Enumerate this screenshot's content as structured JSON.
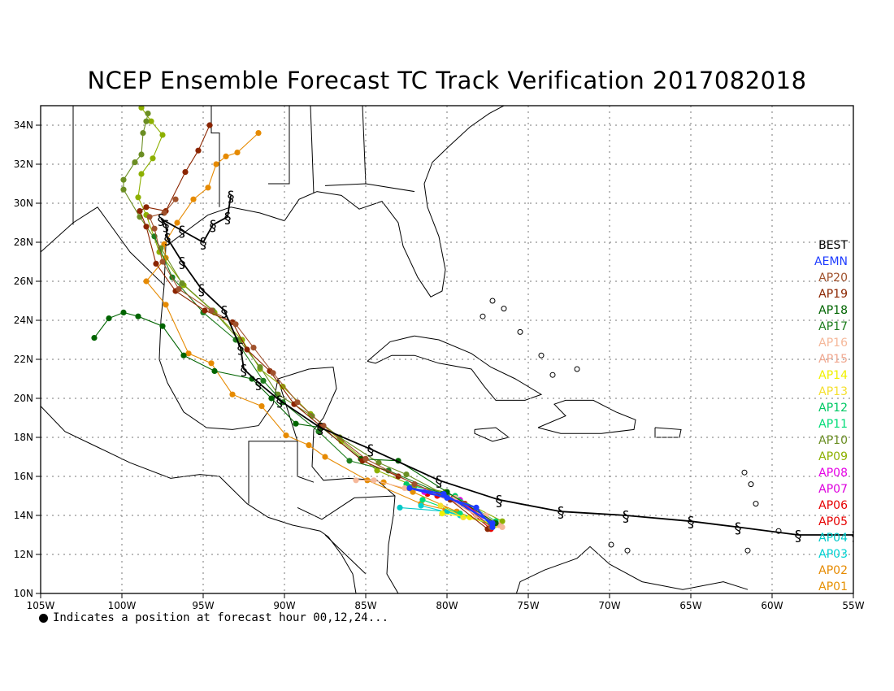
{
  "title": "NCEP Ensemble Forecast TC Track Verification 2017082018",
  "footnote": "Indicates a position at forecast hour 00,12,24...",
  "axes": {
    "lon_ticks": [
      "105W",
      "100W",
      "95W",
      "90W",
      "85W",
      "80W",
      "75W",
      "70W",
      "65W",
      "60W",
      "55W"
    ],
    "lat_ticks": [
      "10N",
      "12N",
      "14N",
      "16N",
      "18N",
      "20N",
      "22N",
      "24N",
      "26N",
      "28N",
      "30N",
      "32N",
      "34N"
    ]
  },
  "legend": [
    {
      "label": "BEST",
      "color": "#000000"
    },
    {
      "label": "AEMN",
      "color": "#1e3cff"
    },
    {
      "label": "AP20",
      "color": "#a0522d"
    },
    {
      "label": "AP19",
      "color": "#8b2500"
    },
    {
      "label": "AP18",
      "color": "#006400"
    },
    {
      "label": "AP17",
      "color": "#1e7d1e"
    },
    {
      "label": "AP16",
      "color": "#f5b89a"
    },
    {
      "label": "AP15",
      "color": "#f0a890"
    },
    {
      "label": "AP14",
      "color": "#f0f000"
    },
    {
      "label": "AP13",
      "color": "#f5e030"
    },
    {
      "label": "AP12",
      "color": "#00c864"
    },
    {
      "label": "AP11",
      "color": "#00dc78"
    },
    {
      "label": "AP10",
      "color": "#6b8e23"
    },
    {
      "label": "AP09",
      "color": "#8db000"
    },
    {
      "label": "AP08",
      "color": "#e600e6"
    },
    {
      "label": "AP07",
      "color": "#dd00dd"
    },
    {
      "label": "AP06",
      "color": "#e60000"
    },
    {
      "label": "AP05",
      "color": "#e60000"
    },
    {
      "label": "AP04",
      "color": "#00c8c8"
    },
    {
      "label": "AP03",
      "color": "#00d2d2"
    },
    {
      "label": "AP02",
      "color": "#e68a00"
    },
    {
      "label": "AP01",
      "color": "#e69000"
    }
  ],
  "tracks": [
    {
      "name": "BEST",
      "color": "#000000",
      "points": [
        [
          -52.9,
          13.1
        ],
        [
          -54.9,
          13.0
        ],
        [
          -58.4,
          13.0
        ],
        [
          -62.1,
          13.4
        ],
        [
          -65.0,
          13.7
        ],
        [
          -69.0,
          14.0
        ],
        [
          -73.0,
          14.2
        ],
        [
          -76.8,
          14.8
        ],
        [
          -80.5,
          15.8
        ],
        [
          -84.7,
          17.4
        ],
        [
          -87.8,
          18.5
        ],
        [
          -90.3,
          19.9
        ],
        [
          -91.6,
          20.8
        ],
        [
          -92.5,
          21.5
        ],
        [
          -92.7,
          22.6
        ],
        [
          -93.7,
          24.5
        ],
        [
          -95.1,
          25.6
        ],
        [
          -96.3,
          27.0
        ],
        [
          -97.2,
          28.2
        ],
        [
          -97.3,
          28.9
        ],
        [
          -97.6,
          29.2
        ],
        [
          -96.3,
          28.6
        ],
        [
          -95.0,
          28.0
        ],
        [
          -94.4,
          28.9
        ],
        [
          -93.5,
          29.3
        ],
        [
          -93.3,
          30.4
        ]
      ],
      "storm_symbols": true
    },
    {
      "name": "AEMN",
      "color": "#1e3cff",
      "points": [
        [
          -77.2,
          13.4
        ],
        [
          -78.2,
          14.4
        ],
        [
          -80.0,
          14.9
        ],
        [
          -82.3,
          15.4
        ],
        [
          -80.2,
          15.1
        ],
        [
          -77.2,
          13.6
        ]
      ],
      "storm_symbols": false
    },
    {
      "name": "AP20",
      "color": "#a0522d",
      "points": [
        [
          -77.3,
          13.4
        ],
        [
          -79.0,
          14.6
        ],
        [
          -82.0,
          15.6
        ],
        [
          -85.0,
          16.9
        ],
        [
          -87.6,
          18.6
        ],
        [
          -89.2,
          19.8
        ],
        [
          -90.7,
          21.3
        ],
        [
          -91.9,
          22.6
        ],
        [
          -93.0,
          23.8
        ],
        [
          -94.5,
          24.5
        ],
        [
          -96.5,
          25.6
        ],
        [
          -97.5,
          27.0
        ],
        [
          -98.0,
          28.7
        ],
        [
          -98.3,
          29.3
        ],
        [
          -97.4,
          29.5
        ],
        [
          -96.7,
          30.2
        ]
      ],
      "storm_symbols": false
    },
    {
      "name": "AP19",
      "color": "#8b2500",
      "points": [
        [
          -77.5,
          13.3
        ],
        [
          -79.8,
          14.8
        ],
        [
          -83.0,
          16.0
        ],
        [
          -85.2,
          16.8
        ],
        [
          -87.8,
          18.6
        ],
        [
          -89.4,
          19.7
        ],
        [
          -90.9,
          21.4
        ],
        [
          -92.3,
          22.5
        ],
        [
          -93.2,
          23.9
        ],
        [
          -94.9,
          24.5
        ],
        [
          -96.7,
          25.5
        ],
        [
          -97.9,
          26.9
        ],
        [
          -98.5,
          28.8
        ],
        [
          -98.9,
          29.6
        ],
        [
          -98.5,
          29.8
        ],
        [
          -97.3,
          29.6
        ],
        [
          -96.1,
          31.6
        ],
        [
          -95.3,
          32.7
        ],
        [
          -94.6,
          34.0
        ]
      ],
      "storm_symbols": false
    },
    {
      "name": "AP18",
      "color": "#006400",
      "points": [
        [
          -77.0,
          13.6
        ],
        [
          -80.0,
          15.2
        ],
        [
          -83.0,
          16.8
        ],
        [
          -85.3,
          16.9
        ],
        [
          -87.7,
          18.5
        ],
        [
          -89.3,
          18.7
        ],
        [
          -90.8,
          20.0
        ],
        [
          -92.0,
          21.0
        ],
        [
          -94.3,
          21.4
        ],
        [
          -96.2,
          22.2
        ],
        [
          -97.5,
          23.7
        ],
        [
          -99.0,
          24.2
        ],
        [
          -99.9,
          24.4
        ],
        [
          -100.8,
          24.1
        ],
        [
          -101.7,
          23.1
        ]
      ],
      "storm_symbols": false
    },
    {
      "name": "AP17",
      "color": "#1e7d1e",
      "points": [
        [
          -77.1,
          13.6
        ],
        [
          -80.3,
          15.1
        ],
        [
          -83.6,
          16.3
        ],
        [
          -86.0,
          16.8
        ],
        [
          -87.9,
          18.3
        ],
        [
          -90.1,
          19.8
        ],
        [
          -91.3,
          20.9
        ],
        [
          -93.0,
          23.0
        ],
        [
          -95.0,
          24.4
        ],
        [
          -96.9,
          26.2
        ],
        [
          -98.0,
          28.3
        ]
      ],
      "storm_symbols": false
    },
    {
      "name": "AP16",
      "color": "#f5b89a",
      "points": [
        [
          -76.6,
          13.4
        ],
        [
          -77.6,
          14.0
        ],
        [
          -79.5,
          14.9
        ],
        [
          -82.6,
          15.4
        ],
        [
          -84.5,
          15.8
        ],
        [
          -85.6,
          15.8
        ]
      ],
      "storm_symbols": false
    },
    {
      "name": "AP15",
      "color": "#f0a890",
      "points": [
        [
          -76.8,
          13.5
        ],
        [
          -78.2,
          14.0
        ],
        [
          -80.2,
          15.0
        ],
        [
          -82.0,
          15.6
        ]
      ],
      "storm_symbols": false
    },
    {
      "name": "AP14",
      "color": "#f0f000",
      "points": [
        [
          -77.0,
          13.5
        ],
        [
          -78.6,
          13.9
        ],
        [
          -80.3,
          14.1
        ]
      ],
      "storm_symbols": false
    },
    {
      "name": "AP13",
      "color": "#f5e030",
      "points": [
        [
          -77.1,
          13.6
        ],
        [
          -79.0,
          13.9
        ],
        [
          -80.4,
          14.5
        ]
      ],
      "storm_symbols": false
    },
    {
      "name": "AP12",
      "color": "#00c864",
      "points": [
        [
          -77.0,
          13.7
        ],
        [
          -79.5,
          15.0
        ],
        [
          -82.5,
          15.6
        ]
      ],
      "storm_symbols": false
    },
    {
      "name": "AP11",
      "color": "#00dc78",
      "points": [
        [
          -77.2,
          13.5
        ],
        [
          -79.2,
          14.1
        ],
        [
          -81.5,
          14.8
        ]
      ],
      "storm_symbols": false
    },
    {
      "name": "AP10",
      "color": "#6b8e23",
      "points": [
        [
          -77.2,
          13.6
        ],
        [
          -80.0,
          15.0
        ],
        [
          -82.5,
          16.1
        ],
        [
          -84.2,
          16.7
        ],
        [
          -86.6,
          18.0
        ],
        [
          -88.3,
          19.1
        ],
        [
          -90.4,
          20.2
        ],
        [
          -91.5,
          21.6
        ],
        [
          -92.8,
          23.0
        ],
        [
          -94.4,
          24.5
        ],
        [
          -96.3,
          25.9
        ],
        [
          -97.6,
          27.7
        ],
        [
          -98.9,
          29.3
        ],
        [
          -99.9,
          30.7
        ],
        [
          -99.9,
          31.2
        ],
        [
          -99.2,
          32.1
        ],
        [
          -98.8,
          32.5
        ],
        [
          -98.7,
          33.6
        ],
        [
          -98.5,
          34.2
        ],
        [
          -98.4,
          34.6
        ]
      ],
      "storm_symbols": false
    },
    {
      "name": "AP09",
      "color": "#8db000",
      "points": [
        [
          -76.6,
          13.7
        ],
        [
          -80.1,
          15.2
        ],
        [
          -82.0,
          15.5
        ],
        [
          -84.3,
          16.3
        ],
        [
          -86.5,
          17.8
        ],
        [
          -88.4,
          19.2
        ],
        [
          -90.1,
          20.6
        ],
        [
          -91.5,
          21.5
        ],
        [
          -92.6,
          23.0
        ],
        [
          -94.3,
          24.4
        ],
        [
          -96.2,
          25.8
        ],
        [
          -97.7,
          27.5
        ],
        [
          -98.5,
          29.4
        ],
        [
          -99.0,
          30.3
        ],
        [
          -98.8,
          31.5
        ],
        [
          -98.1,
          32.3
        ],
        [
          -97.5,
          33.5
        ],
        [
          -98.2,
          34.2
        ],
        [
          -98.8,
          34.9
        ]
      ],
      "storm_symbols": false
    },
    {
      "name": "AP08",
      "color": "#e600e6",
      "points": [
        [
          -77.1,
          13.6
        ],
        [
          -79.5,
          14.8
        ],
        [
          -81.4,
          15.2
        ]
      ],
      "storm_symbols": false
    },
    {
      "name": "AP07",
      "color": "#dd00dd",
      "points": [
        [
          -77.3,
          13.4
        ],
        [
          -79.2,
          14.8
        ],
        [
          -81.0,
          15.2
        ]
      ],
      "storm_symbols": false
    },
    {
      "name": "AP06",
      "color": "#e60000",
      "points": [
        [
          -77.3,
          13.3
        ],
        [
          -79.6,
          14.9
        ],
        [
          -81.2,
          15.1
        ]
      ],
      "storm_symbols": false
    },
    {
      "name": "AP05",
      "color": "#e60000",
      "points": [
        [
          -77.1,
          13.5
        ],
        [
          -78.9,
          14.6
        ],
        [
          -80.6,
          15.0
        ]
      ],
      "storm_symbols": false
    },
    {
      "name": "AP04",
      "color": "#00c8c8",
      "points": [
        [
          -77.2,
          13.6
        ],
        [
          -80.0,
          14.2
        ],
        [
          -82.9,
          14.4
        ]
      ],
      "storm_symbols": false
    },
    {
      "name": "AP03",
      "color": "#00d2d2",
      "points": [
        [
          -77.0,
          13.6
        ],
        [
          -79.2,
          14.0
        ],
        [
          -81.6,
          14.5
        ]
      ],
      "storm_symbols": false
    },
    {
      "name": "AP02",
      "color": "#e68a00",
      "points": [
        [
          -77.1,
          13.5
        ],
        [
          -80.1,
          14.3
        ],
        [
          -81.6,
          14.6
        ],
        [
          -84.9,
          15.8
        ],
        [
          -87.5,
          17.0
        ],
        [
          -88.5,
          17.6
        ],
        [
          -89.9,
          18.1
        ],
        [
          -91.4,
          19.6
        ],
        [
          -93.2,
          20.2
        ],
        [
          -94.5,
          21.8
        ],
        [
          -95.9,
          22.3
        ],
        [
          -97.3,
          24.8
        ],
        [
          -98.5,
          26.0
        ],
        [
          -97.3,
          27.2
        ],
        [
          -97.4,
          27.9
        ],
        [
          -96.6,
          29.0
        ],
        [
          -95.6,
          30.2
        ],
        [
          -94.7,
          30.8
        ],
        [
          -94.2,
          32.0
        ],
        [
          -93.6,
          32.4
        ],
        [
          -92.9,
          32.6
        ],
        [
          -91.6,
          33.6
        ]
      ],
      "storm_symbols": false
    },
    {
      "name": "AP01",
      "color": "#e69000",
      "points": [
        [
          -77.3,
          13.5
        ],
        [
          -79.4,
          14.2
        ],
        [
          -82.1,
          15.2
        ],
        [
          -83.9,
          15.7
        ]
      ],
      "storm_symbols": false
    }
  ]
}
